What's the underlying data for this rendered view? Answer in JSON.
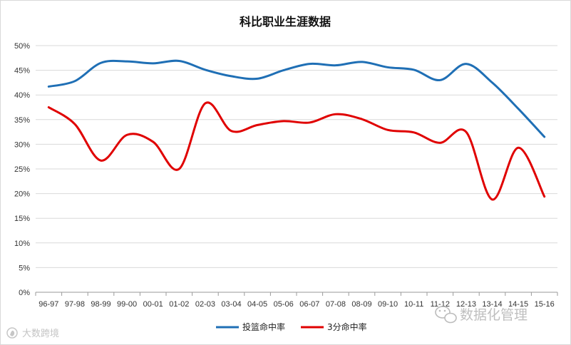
{
  "chart_data": {
    "type": "line",
    "title": "科比职业生涯数据",
    "xlabel": "",
    "ylabel": "",
    "ylim": [
      0,
      50
    ],
    "yticks": [
      0,
      5,
      10,
      15,
      20,
      25,
      30,
      35,
      40,
      45,
      50
    ],
    "ytick_labels": [
      "0%",
      "5%",
      "10%",
      "15%",
      "20%",
      "25%",
      "30%",
      "35%",
      "40%",
      "45%",
      "50%"
    ],
    "grid": true,
    "legend": "bottom",
    "categories": [
      "96-97",
      "97-98",
      "98-99",
      "99-00",
      "00-01",
      "01-02",
      "02-03",
      "03-04",
      "04-05",
      "05-06",
      "06-07",
      "07-08",
      "08-09",
      "09-10",
      "10-11",
      "11-12",
      "12-13",
      "13-14",
      "14-15",
      "15-16"
    ],
    "series": [
      {
        "name": "投篮命中率",
        "color": "#1f6fb5",
        "values": [
          41.7,
          42.8,
          46.5,
          46.8,
          46.4,
          46.9,
          45.1,
          43.8,
          43.3,
          45.0,
          46.3,
          46.0,
          46.7,
          45.6,
          45.1,
          43.0,
          46.3,
          42.5,
          37.2,
          31.5
        ]
      },
      {
        "name": "3分命中率",
        "color": "#e00000",
        "values": [
          37.5,
          34.1,
          26.7,
          31.9,
          30.5,
          25.0,
          38.3,
          32.7,
          33.9,
          34.7,
          34.4,
          36.1,
          35.1,
          32.9,
          32.4,
          30.3,
          32.5,
          18.8,
          29.3,
          19.4
        ]
      }
    ]
  },
  "watermarks": {
    "left": "大数跨境",
    "left_icon": "fire-logo-icon",
    "right": "数据化管理",
    "right_icon": "wechat-icon"
  }
}
